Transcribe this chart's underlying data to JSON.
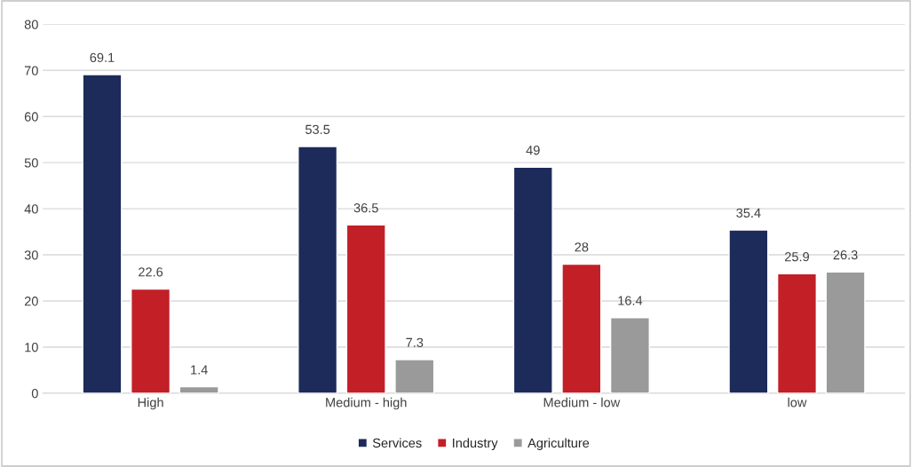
{
  "chart_data": {
    "type": "bar",
    "categories": [
      "High",
      "Medium - high",
      "Medium - low",
      "low"
    ],
    "series": [
      {
        "name": "Services",
        "color": "#1d2b5a",
        "values": [
          69.1,
          53.5,
          49,
          35.4
        ]
      },
      {
        "name": "Industry",
        "color": "#c21f27",
        "values": [
          22.6,
          36.5,
          28,
          25.9
        ]
      },
      {
        "name": "Agriculture",
        "color": "#9a9a9a",
        "values": [
          1.4,
          7.3,
          16.4,
          26.3
        ]
      }
    ],
    "ylim": [
      0,
      80
    ],
    "yticks": [
      0,
      10,
      20,
      30,
      40,
      50,
      60,
      70,
      80
    ],
    "grid": "y",
    "legend": "bottom",
    "data_labels": true
  }
}
